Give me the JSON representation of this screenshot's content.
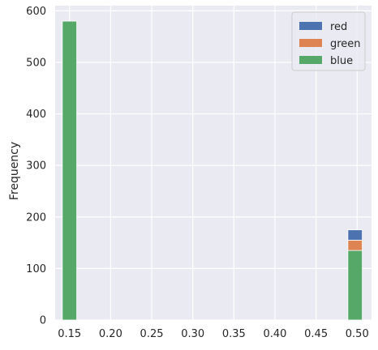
{
  "chart_data": {
    "type": "bar",
    "subtype": "stacked histogram",
    "title": "",
    "xlabel": "",
    "ylabel": "Frequency",
    "xlim": [
      0.1325,
      0.5175
    ],
    "ylim": [
      0,
      610
    ],
    "xticks": [
      "0.15",
      "0.20",
      "0.25",
      "0.30",
      "0.35",
      "0.40",
      "0.45",
      "0.50"
    ],
    "yticks": [
      "0",
      "100",
      "200",
      "300",
      "400",
      "500",
      "600"
    ],
    "grid": true,
    "legend_position": "top-right",
    "bin_width": 0.0175,
    "x": [
      0.15,
      0.4975
    ],
    "series": [
      {
        "name": "blue",
        "color": "#55a868",
        "values": [
          580,
          135
        ]
      },
      {
        "name": "green",
        "color": "#dd8452",
        "values": [
          0,
          20
        ]
      },
      {
        "name": "red",
        "color": "#4c72b0",
        "values": [
          0,
          20
        ]
      }
    ],
    "legend": [
      {
        "name": "red",
        "color": "#4c72b0"
      },
      {
        "name": "green",
        "color": "#dd8452"
      },
      {
        "name": "blue",
        "color": "#55a868"
      }
    ],
    "background_color": "#eaeaf2",
    "grid_color": "#ffffff"
  }
}
